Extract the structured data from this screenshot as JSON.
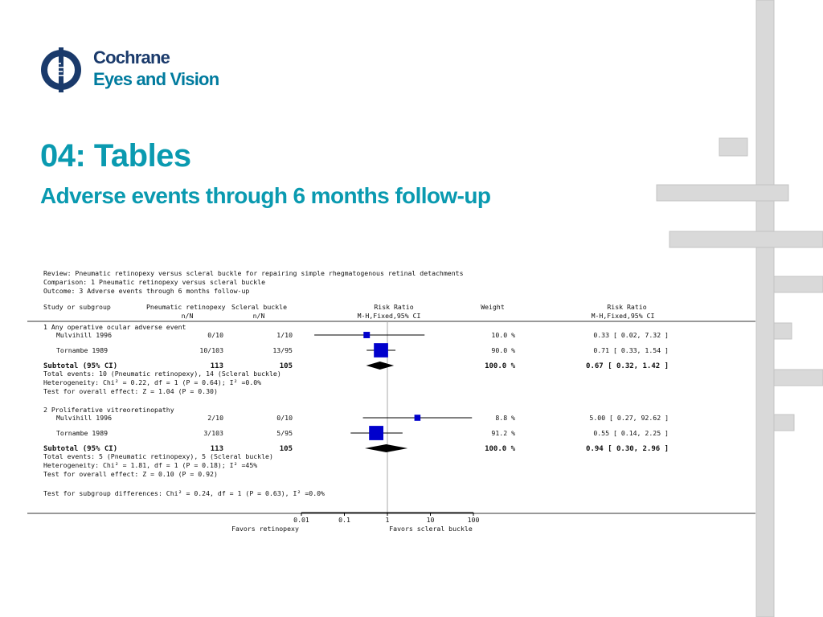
{
  "logo": {
    "line1": "Cochrane",
    "line2": "Eyes and Vision"
  },
  "slide": {
    "title": "04: Tables",
    "subtitle": "Adverse events through 6 months follow-up"
  },
  "chart_data": {
    "type": "forest",
    "header": {
      "review": "Review:  Pneumatic retinopexy versus scleral buckle for repairing simple rhegmatogenous retinal detachments",
      "comparison": "Comparison:  1 Pneumatic retinopexy versus scleral buckle",
      "outcome": "Outcome:  3 Adverse events through 6 months follow-up"
    },
    "columns": {
      "study": "Study or subgroup",
      "exp": "Pneumatic retinopexy",
      "exp_sub": "n/N",
      "ctrl": "Scleral buckle",
      "ctrl_sub": "n/N",
      "effect": "Risk Ratio",
      "effect_sub": "M-H,Fixed,95% CI",
      "weight": "Weight",
      "rr": "Risk Ratio",
      "rr_sub": "M-H,Fixed,95% CI"
    },
    "scale": "log",
    "ticks": [
      0.01,
      0.1,
      1,
      10,
      100
    ],
    "tick_labels": [
      "0.01",
      "0.1",
      "1",
      "10",
      "100"
    ],
    "favors_left": "Favors retinopexy",
    "favors_right": "Favors scleral buckle",
    "subgroups": [
      {
        "name": "1 Any operative ocular adverse event",
        "studies": [
          {
            "name": "Mulvihill 1996",
            "exp": "0/10",
            "ctrl": "1/10",
            "rr": 0.33,
            "lo": 0.02,
            "hi": 7.32,
            "weight_pct": 10.0,
            "weight": "10.0 %",
            "ci": "0.33 [ 0.02, 7.32 ]"
          },
          {
            "name": "Tornambe 1989",
            "exp": "10/103",
            "ctrl": "13/95",
            "rr": 0.71,
            "lo": 0.33,
            "hi": 1.54,
            "weight_pct": 90.0,
            "weight": "90.0 %",
            "ci": "0.71 [ 0.33, 1.54 ]"
          }
        ],
        "subtotal": {
          "label": "Subtotal (95% CI)",
          "exp": "113",
          "ctrl": "105",
          "weight": "100.0 %",
          "rr": 0.67,
          "lo": 0.32,
          "hi": 1.42,
          "ci": "0.67 [ 0.32, 1.42 ]"
        },
        "notes": [
          "Total events: 10 (Pneumatic retinopexy), 14 (Scleral buckle)",
          "Heterogeneity: Chi² = 0.22, df = 1 (P = 0.64); I² =0.0%",
          "Test for overall effect: Z = 1.04 (P = 0.30)"
        ]
      },
      {
        "name": "2 Proliferative vitreoretinopathy",
        "studies": [
          {
            "name": "Mulvihill 1996",
            "exp": "2/10",
            "ctrl": "0/10",
            "rr": 5.0,
            "lo": 0.27,
            "hi": 92.62,
            "weight_pct": 8.8,
            "weight": "8.8 %",
            "ci": "5.00 [ 0.27, 92.62 ]"
          },
          {
            "name": "Tornambe 1989",
            "exp": "3/103",
            "ctrl": "5/95",
            "rr": 0.55,
            "lo": 0.14,
            "hi": 2.25,
            "weight_pct": 91.2,
            "weight": "91.2 %",
            "ci": "0.55 [ 0.14, 2.25 ]"
          }
        ],
        "subtotal": {
          "label": "Subtotal (95% CI)",
          "exp": "113",
          "ctrl": "105",
          "weight": "100.0 %",
          "rr": 0.94,
          "lo": 0.3,
          "hi": 2.96,
          "ci": "0.94 [ 0.30, 2.96 ]"
        },
        "notes": [
          "Total events: 5 (Pneumatic retinopexy), 5 (Scleral buckle)",
          "Heterogeneity: Chi² = 1.81, df = 1 (P = 0.18); I² =45%",
          "Test for overall effect: Z = 0.10 (P = 0.92)"
        ]
      }
    ],
    "footer": "Test for subgroup differences: Chi² = 0.24, df = 1 (P = 0.63), I² =0.0%"
  },
  "colors": {
    "accent": "#0a9ab0",
    "brand_dark": "#1a3a6b",
    "marker": "#0000cc",
    "diamond": "#000000",
    "deco": "#d9d9d9"
  }
}
